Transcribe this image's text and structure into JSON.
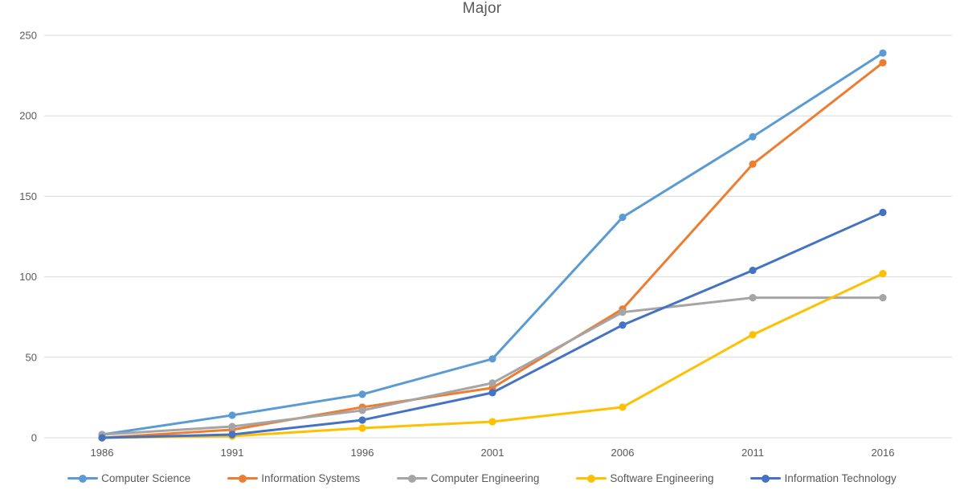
{
  "chart_data": {
    "type": "line",
    "title": "Major",
    "categories": [
      "1986",
      "1991",
      "1996",
      "2001",
      "2006",
      "2011",
      "2016"
    ],
    "series": [
      {
        "name": "Computer Science",
        "color": "#5B9BD5",
        "values": [
          2,
          14,
          27,
          49,
          137,
          187,
          239
        ]
      },
      {
        "name": "Information Systems",
        "color": "#ED7D31",
        "values": [
          0,
          5,
          19,
          31,
          80,
          170,
          233
        ]
      },
      {
        "name": "Computer Engineering",
        "color": "#A5A5A5",
        "values": [
          2,
          7,
          17,
          34,
          78,
          87,
          87
        ]
      },
      {
        "name": "Software Engineering",
        "color": "#FFC000",
        "values": [
          0,
          1,
          6,
          10,
          19,
          64,
          102
        ]
      },
      {
        "name": "Information Technology",
        "color": "#4472C4",
        "values": [
          0,
          2,
          11,
          28,
          70,
          104,
          140
        ]
      }
    ],
    "ylim": [
      0,
      250
    ],
    "y_ticks": [
      0,
      50,
      100,
      150,
      200,
      250
    ],
    "grid": "horizontal",
    "legend_position": "bottom",
    "xlabel": "",
    "ylabel": "",
    "colors": {
      "gridline": "#D9D9D9",
      "axis_text": "#595959",
      "title_text": "#595959",
      "background": "#FFFFFF"
    }
  }
}
